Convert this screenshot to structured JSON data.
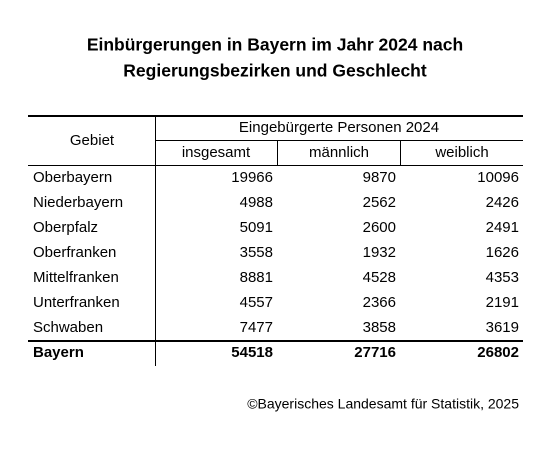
{
  "header": {
    "title_lines": [
      "Einbürgerungen in Bayern im Jahr 2024 nach",
      "Regierungsbezirken und Geschlecht"
    ]
  },
  "table": {
    "row_header": "Gebiet",
    "group_header": "Eingebürgerte Personen 2024",
    "columns": [
      "insgesamt",
      "männlich",
      "weiblich"
    ],
    "rows": [
      [
        "Oberbayern",
        19966,
        9870,
        10096
      ],
      [
        "Niederbayern",
        4988,
        2562,
        2426
      ],
      [
        "Oberpfalz",
        5091,
        2600,
        2491
      ],
      [
        "Oberfranken",
        3558,
        1932,
        1626
      ],
      [
        "Mittelfranken",
        8881,
        4528,
        4353
      ],
      [
        "Unterfranken",
        4557,
        2366,
        2191
      ],
      [
        "Schwaben",
        7477,
        3858,
        3619
      ]
    ],
    "total": [
      "Bayern",
      54518,
      27716,
      26802
    ]
  },
  "footer": {
    "source": "©Bayerisches Landesamt für Statistik, 2025"
  }
}
